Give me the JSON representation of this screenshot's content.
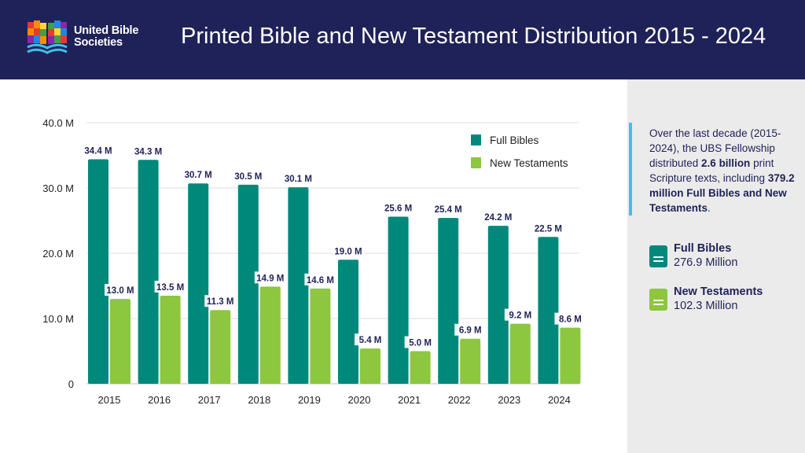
{
  "header": {
    "org_name_line1": "United Bible",
    "org_name_line2": "Societies",
    "title": "Printed Bible and New Testament Distribution 2015 - 2024",
    "background": "#1f2258"
  },
  "summary": {
    "text_1": "Over the last decade (2015-2024), the UBS Fellowship distributed ",
    "bold_1": "2.6 billion",
    "text_2": " print Scripture texts, including ",
    "bold_2": "379.2 million Full Bibles and New Testaments",
    "text_3": ".",
    "accent": "#3ec1e8"
  },
  "stats": [
    {
      "label": "Full Bibles",
      "value": "276.9 Million",
      "icon": "book-icon",
      "color": "#00897b"
    },
    {
      "label": "New Testaments",
      "value": "102.3 Million",
      "icon": "book-icon",
      "color": "#8dc63f"
    }
  ],
  "chart_data": {
    "type": "bar",
    "title": "Printed Bible and New Testament Distribution 2015 - 2024",
    "xlabel": "",
    "ylabel": "",
    "categories": [
      "2015",
      "2016",
      "2017",
      "2018",
      "2019",
      "2020",
      "2021",
      "2022",
      "2023",
      "2024"
    ],
    "series": [
      {
        "name": "Full Bibles",
        "color": "#00897b",
        "values": [
          34.4,
          34.3,
          30.7,
          30.5,
          30.1,
          19.0,
          25.6,
          25.4,
          24.2,
          22.5
        ],
        "labels": [
          "34.4 M",
          "34.3 M",
          "30.7 M",
          "30.5 M",
          "30.1 M",
          "19.0 M",
          "25.6 M",
          "25.4 M",
          "24.2 M",
          "22.5 M"
        ]
      },
      {
        "name": "New Testaments",
        "color": "#8dc63f",
        "values": [
          13.0,
          13.5,
          11.3,
          14.9,
          14.6,
          5.4,
          5.0,
          6.9,
          9.2,
          8.6
        ],
        "labels": [
          "13.0 M",
          "13.5 M",
          "11.3 M",
          "14.9 M",
          "14.6 M",
          "5.4 M",
          "5.0 M",
          "6.9 M",
          "9.2 M",
          "8.6 M"
        ]
      }
    ],
    "yticks": [
      0,
      10,
      20,
      30,
      40
    ],
    "ytick_labels": [
      "0",
      "10.0 M",
      "20.0 M",
      "30.0 M",
      "40.0 M"
    ],
    "ylim": [
      0,
      40
    ],
    "grid": true,
    "legend": "top-right",
    "label_color": "#1f2258"
  }
}
